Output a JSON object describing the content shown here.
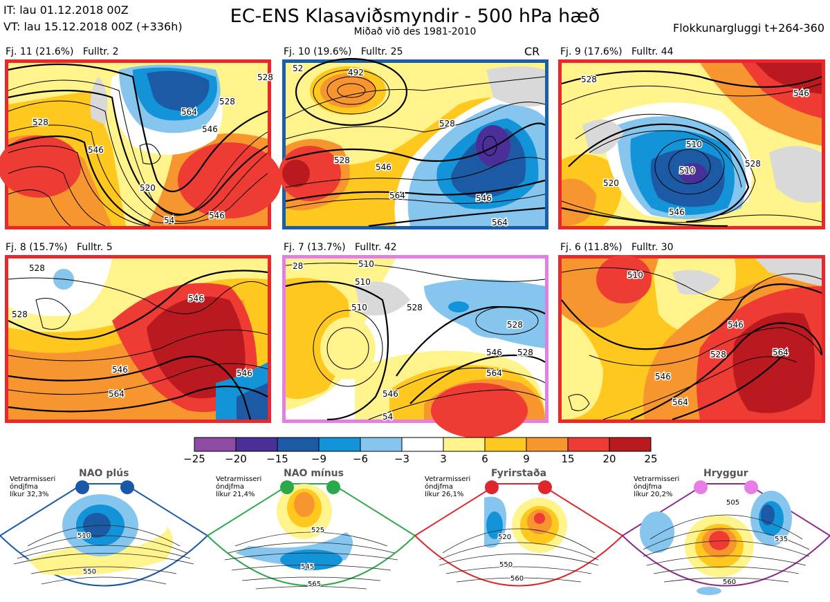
{
  "header": {
    "it_line": "IT: lau 01.12.2018 00Z",
    "vt_line": "VT: lau 15.12.2018 00Z  (+336h)",
    "title": "EC-ENS Klasaviðsmyndir - 500 hPa hæð",
    "subtitle": "Miðað við des 1981-2010",
    "window": "Flokkunargluggi t+264-360"
  },
  "colors": {
    "frame_red": "#e8282b",
    "frame_blue": "#1a5ea8",
    "frame_pink": "#e27ee4",
    "land_grey": "#d9d9d9",
    "coast": "#8c6c4c",
    "regime_blue": "#1758a8",
    "regime_green": "#2aa84a",
    "regime_red": "#e0262c",
    "regime_pink": "#ea7ce8"
  },
  "clusters": [
    {
      "label": "Fj. 11 (21.6%)",
      "rep": "Fulltr. 2",
      "frame": "red",
      "tag": "",
      "contours": [
        "528",
        "546",
        "564",
        "546",
        "520",
        "528",
        "54",
        "528",
        "546"
      ]
    },
    {
      "label": "Fj. 10 (19.6%)",
      "rep": "Fulltr. 25",
      "frame": "blue",
      "tag": "CR",
      "contours": [
        "492",
        "528",
        "546",
        "564",
        "528",
        "546",
        "564",
        "52"
      ]
    },
    {
      "label": "Fj. 9 (17.6%)",
      "rep": "Fulltr. 44",
      "frame": "red",
      "tag": "",
      "contours": [
        "528",
        "546",
        "510",
        "510",
        "528",
        "546",
        "520"
      ]
    },
    {
      "label": "Fj. 8 (15.7%)",
      "rep": "Fulltr. 5",
      "frame": "red",
      "tag": "",
      "contours": [
        "528",
        "546",
        "564",
        "546",
        "546",
        "528"
      ]
    },
    {
      "label": "Fj. 7 (13.7%)",
      "rep": "Fulltr. 42",
      "frame": "pink",
      "tag": "",
      "contours": [
        "510",
        "510",
        "510",
        "528",
        "528",
        "546",
        "564",
        "546",
        "528",
        "28",
        "54"
      ]
    },
    {
      "label": "Fj. 6 (11.8%)",
      "rep": "Fulltr. 30",
      "frame": "red",
      "tag": "",
      "contours": [
        "510",
        "528",
        "546",
        "546",
        "564",
        "564"
      ]
    }
  ],
  "colorbar": {
    "ticks": [
      "−25",
      "−20",
      "−15",
      "−9",
      "−6",
      "−3",
      "3",
      "6",
      "9",
      "15",
      "20",
      "25"
    ],
    "colors": [
      "#8f4aa3",
      "#4b2f98",
      "#1c5aa6",
      "#1394d8",
      "#86c6ee",
      "#ffffff",
      "#fff38c",
      "#ffc81e",
      "#f7952f",
      "#ee3b33",
      "#ba1a1f"
    ]
  },
  "regimes": [
    {
      "name": "NAO plús",
      "prob_lines": [
        "Vetrarmisseri",
        "óndjfma",
        "líkur 32,3%"
      ],
      "contours": [
        "510",
        "550"
      ],
      "color": "blue"
    },
    {
      "name": "NAO mínus",
      "prob_lines": [
        "Vetrarmisseri",
        "óndjfma",
        "líkur 21,4%"
      ],
      "contours": [
        "525",
        "545",
        "565"
      ],
      "color": "green"
    },
    {
      "name": "Fyrirstaða",
      "prob_lines": [
        "Vetrarmisseri",
        "óndjfma",
        "líkur 26,1%"
      ],
      "contours": [
        "520",
        "550",
        "560"
      ],
      "color": "red"
    },
    {
      "name": "Hryggur",
      "prob_lines": [
        "Vetrarmisseri",
        "óndjfma",
        "líkur 20,2%"
      ],
      "contours": [
        "505",
        "535",
        "560"
      ],
      "color": "pink"
    }
  ]
}
